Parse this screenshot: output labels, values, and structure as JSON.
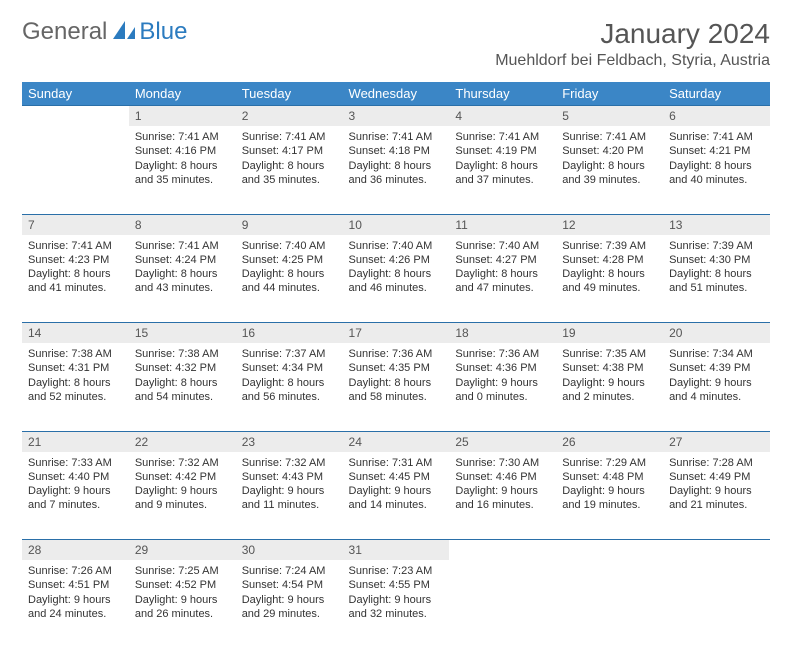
{
  "logo": {
    "part1": "General",
    "part2": "Blue"
  },
  "title": "January 2024",
  "location": "Muehldorf bei Feldbach, Styria, Austria",
  "colors": {
    "header_bg": "#3b86c6",
    "header_text": "#ffffff",
    "daynum_bg": "#ececec",
    "daynum_text": "#555555",
    "row_border": "#2a6fa8",
    "body_text": "#333333",
    "logo_gray": "#666666",
    "logo_blue": "#2b7bbf"
  },
  "weekdays": [
    "Sunday",
    "Monday",
    "Tuesday",
    "Wednesday",
    "Thursday",
    "Friday",
    "Saturday"
  ],
  "weeks": [
    [
      null,
      {
        "n": "1",
        "sunrise": "7:41 AM",
        "sunset": "4:16 PM",
        "daylight": "8 hours and 35 minutes."
      },
      {
        "n": "2",
        "sunrise": "7:41 AM",
        "sunset": "4:17 PM",
        "daylight": "8 hours and 35 minutes."
      },
      {
        "n": "3",
        "sunrise": "7:41 AM",
        "sunset": "4:18 PM",
        "daylight": "8 hours and 36 minutes."
      },
      {
        "n": "4",
        "sunrise": "7:41 AM",
        "sunset": "4:19 PM",
        "daylight": "8 hours and 37 minutes."
      },
      {
        "n": "5",
        "sunrise": "7:41 AM",
        "sunset": "4:20 PM",
        "daylight": "8 hours and 39 minutes."
      },
      {
        "n": "6",
        "sunrise": "7:41 AM",
        "sunset": "4:21 PM",
        "daylight": "8 hours and 40 minutes."
      }
    ],
    [
      {
        "n": "7",
        "sunrise": "7:41 AM",
        "sunset": "4:23 PM",
        "daylight": "8 hours and 41 minutes."
      },
      {
        "n": "8",
        "sunrise": "7:41 AM",
        "sunset": "4:24 PM",
        "daylight": "8 hours and 43 minutes."
      },
      {
        "n": "9",
        "sunrise": "7:40 AM",
        "sunset": "4:25 PM",
        "daylight": "8 hours and 44 minutes."
      },
      {
        "n": "10",
        "sunrise": "7:40 AM",
        "sunset": "4:26 PM",
        "daylight": "8 hours and 46 minutes."
      },
      {
        "n": "11",
        "sunrise": "7:40 AM",
        "sunset": "4:27 PM",
        "daylight": "8 hours and 47 minutes."
      },
      {
        "n": "12",
        "sunrise": "7:39 AM",
        "sunset": "4:28 PM",
        "daylight": "8 hours and 49 minutes."
      },
      {
        "n": "13",
        "sunrise": "7:39 AM",
        "sunset": "4:30 PM",
        "daylight": "8 hours and 51 minutes."
      }
    ],
    [
      {
        "n": "14",
        "sunrise": "7:38 AM",
        "sunset": "4:31 PM",
        "daylight": "8 hours and 52 minutes."
      },
      {
        "n": "15",
        "sunrise": "7:38 AM",
        "sunset": "4:32 PM",
        "daylight": "8 hours and 54 minutes."
      },
      {
        "n": "16",
        "sunrise": "7:37 AM",
        "sunset": "4:34 PM",
        "daylight": "8 hours and 56 minutes."
      },
      {
        "n": "17",
        "sunrise": "7:36 AM",
        "sunset": "4:35 PM",
        "daylight": "8 hours and 58 minutes."
      },
      {
        "n": "18",
        "sunrise": "7:36 AM",
        "sunset": "4:36 PM",
        "daylight": "9 hours and 0 minutes."
      },
      {
        "n": "19",
        "sunrise": "7:35 AM",
        "sunset": "4:38 PM",
        "daylight": "9 hours and 2 minutes."
      },
      {
        "n": "20",
        "sunrise": "7:34 AM",
        "sunset": "4:39 PM",
        "daylight": "9 hours and 4 minutes."
      }
    ],
    [
      {
        "n": "21",
        "sunrise": "7:33 AM",
        "sunset": "4:40 PM",
        "daylight": "9 hours and 7 minutes."
      },
      {
        "n": "22",
        "sunrise": "7:32 AM",
        "sunset": "4:42 PM",
        "daylight": "9 hours and 9 minutes."
      },
      {
        "n": "23",
        "sunrise": "7:32 AM",
        "sunset": "4:43 PM",
        "daylight": "9 hours and 11 minutes."
      },
      {
        "n": "24",
        "sunrise": "7:31 AM",
        "sunset": "4:45 PM",
        "daylight": "9 hours and 14 minutes."
      },
      {
        "n": "25",
        "sunrise": "7:30 AM",
        "sunset": "4:46 PM",
        "daylight": "9 hours and 16 minutes."
      },
      {
        "n": "26",
        "sunrise": "7:29 AM",
        "sunset": "4:48 PM",
        "daylight": "9 hours and 19 minutes."
      },
      {
        "n": "27",
        "sunrise": "7:28 AM",
        "sunset": "4:49 PM",
        "daylight": "9 hours and 21 minutes."
      }
    ],
    [
      {
        "n": "28",
        "sunrise": "7:26 AM",
        "sunset": "4:51 PM",
        "daylight": "9 hours and 24 minutes."
      },
      {
        "n": "29",
        "sunrise": "7:25 AM",
        "sunset": "4:52 PM",
        "daylight": "9 hours and 26 minutes."
      },
      {
        "n": "30",
        "sunrise": "7:24 AM",
        "sunset": "4:54 PM",
        "daylight": "9 hours and 29 minutes."
      },
      {
        "n": "31",
        "sunrise": "7:23 AM",
        "sunset": "4:55 PM",
        "daylight": "9 hours and 32 minutes."
      },
      null,
      null,
      null
    ]
  ],
  "labels": {
    "sunrise": "Sunrise:",
    "sunset": "Sunset:",
    "daylight": "Daylight:"
  }
}
